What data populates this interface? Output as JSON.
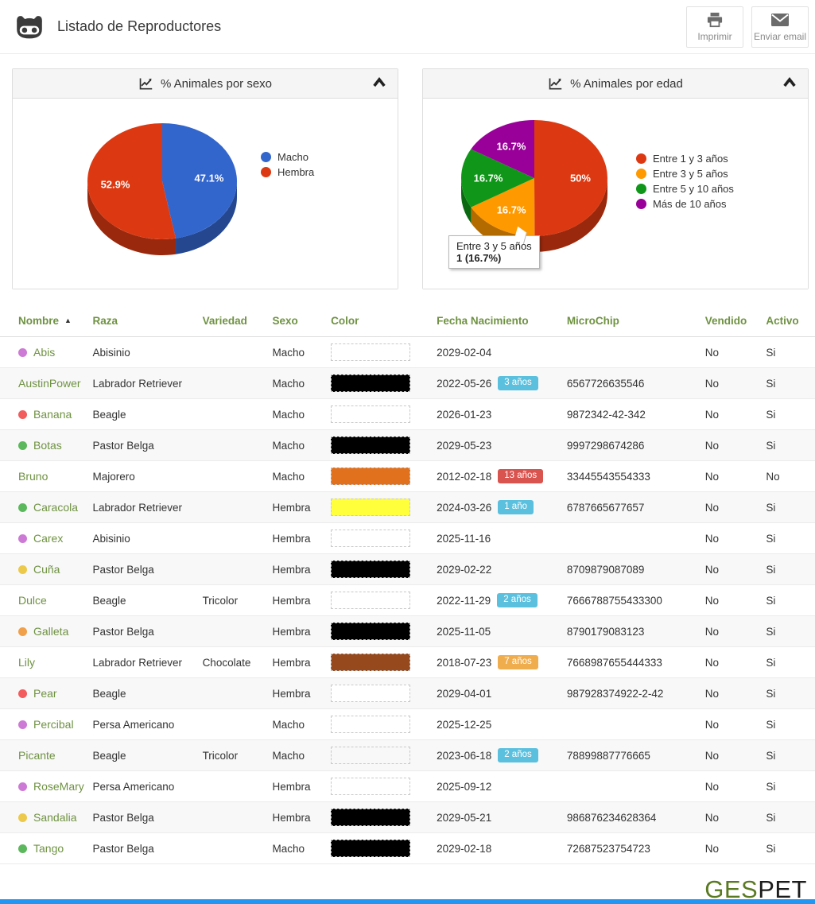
{
  "header": {
    "title": "Listado de Reproductores",
    "print_label": "Imprimir",
    "email_label": "Enviar email"
  },
  "panels": {
    "sexo_title": "% Animales por sexo",
    "edad_title": "% Animales por edad",
    "edad_tooltip": {
      "label": "Entre 3 y 5 años",
      "value": "1 (16.7%)"
    }
  },
  "chart_data": [
    {
      "type": "pie",
      "style": "3d",
      "title": "% Animales por sexo",
      "labels": [
        "Macho",
        "Hembra"
      ],
      "values": [
        47.1,
        52.9
      ],
      "display_labels": [
        "47.1%",
        "52.9%"
      ],
      "colors": [
        "#3366cc",
        "#dc3912"
      ],
      "legend_position": "right"
    },
    {
      "type": "pie",
      "style": "3d",
      "title": "% Animales por edad",
      "labels": [
        "Entre 1 y 3 años",
        "Entre 3 y 5 años",
        "Entre 5 y 10 años",
        "Más de 10 años"
      ],
      "values": [
        50,
        16.7,
        16.7,
        16.7
      ],
      "display_labels": [
        "50%",
        "16.7%",
        "16.7%",
        "16.7%"
      ],
      "colors": [
        "#dc3912",
        "#ff9900",
        "#109618",
        "#990099"
      ],
      "legend_position": "right",
      "tooltip": {
        "label": "Entre 3 y 5 años",
        "value": "1 (16.7%)"
      }
    }
  ],
  "table": {
    "columns": [
      "Nombre",
      "Raza",
      "Variedad",
      "Sexo",
      "Color",
      "Fecha Nacimiento",
      "MicroChip",
      "Vendido",
      "Activo"
    ],
    "sorted_column": "Nombre",
    "rows": [
      {
        "name": "Abis",
        "dot": "#cd7ad6",
        "raza": "Abisinio",
        "variedad": "",
        "sexo": "Macho",
        "color": "#ffffff",
        "fecha": "2029-02-04",
        "badge": null,
        "microchip": "",
        "vendido": "No",
        "activo": "Si"
      },
      {
        "name": "AustinPower",
        "dot": null,
        "raza": "Labrador Retriever",
        "variedad": "",
        "sexo": "Macho",
        "color": "#000000",
        "fecha": "2022-05-26",
        "badge": {
          "text": "3 años",
          "color": "#5bc0de"
        },
        "microchip": "6567726635546",
        "vendido": "No",
        "activo": "Si"
      },
      {
        "name": "Banana",
        "dot": "#f25c5c",
        "raza": "Beagle",
        "variedad": "",
        "sexo": "Macho",
        "color": "#ffffff",
        "fecha": "2026-01-23",
        "badge": null,
        "microchip": "9872342-42-342",
        "vendido": "No",
        "activo": "Si"
      },
      {
        "name": "Botas",
        "dot": "#5cb85c",
        "raza": "Pastor Belga",
        "variedad": "",
        "sexo": "Macho",
        "color": "#000000",
        "fecha": "2029-05-23",
        "badge": null,
        "microchip": "9997298674286",
        "vendido": "No",
        "activo": "Si"
      },
      {
        "name": "Bruno",
        "dot": null,
        "raza": "Majorero",
        "variedad": "",
        "sexo": "Macho",
        "color": "#e2711d",
        "fecha": "2012-02-18",
        "badge": {
          "text": "13 años",
          "color": "#d9534f"
        },
        "microchip": "33445543554333",
        "vendido": "No",
        "activo": "No"
      },
      {
        "name": "Caracola",
        "dot": "#5cb85c",
        "raza": "Labrador Retriever",
        "variedad": "",
        "sexo": "Hembra",
        "color": "#ffff3c",
        "fecha": "2024-03-26",
        "badge": {
          "text": "1 año",
          "color": "#5bc0de"
        },
        "microchip": "6787665677657",
        "vendido": "No",
        "activo": "Si"
      },
      {
        "name": "Carex",
        "dot": "#cd7ad6",
        "raza": "Abisinio",
        "variedad": "",
        "sexo": "Hembra",
        "color": "#ffffff",
        "fecha": "2025-11-16",
        "badge": null,
        "microchip": "",
        "vendido": "No",
        "activo": "Si"
      },
      {
        "name": "Cuña",
        "dot": "#ecc94b",
        "raza": "Pastor Belga",
        "variedad": "",
        "sexo": "Hembra",
        "color": "#000000",
        "fecha": "2029-02-22",
        "badge": null,
        "microchip": "8709879087089",
        "vendido": "No",
        "activo": "Si"
      },
      {
        "name": "Dulce",
        "dot": null,
        "raza": "Beagle",
        "variedad": "Tricolor",
        "sexo": "Hembra",
        "color": "#ffffff",
        "fecha": "2022-11-29",
        "badge": {
          "text": "2 años",
          "color": "#5bc0de"
        },
        "microchip": "7666788755433300",
        "vendido": "No",
        "activo": "Si"
      },
      {
        "name": "Galleta",
        "dot": "#f0a04a",
        "raza": "Pastor Belga",
        "variedad": "",
        "sexo": "Hembra",
        "color": "#000000",
        "fecha": "2025-11-05",
        "badge": null,
        "microchip": "8790179083123",
        "vendido": "No",
        "activo": "Si"
      },
      {
        "name": "Lily",
        "dot": null,
        "raza": "Labrador Retriever",
        "variedad": "Chocolate",
        "sexo": "Hembra",
        "color": "#96491c",
        "fecha": "2018-07-23",
        "badge": {
          "text": "7 años",
          "color": "#f0ad4e"
        },
        "microchip": "7668987655444333",
        "vendido": "No",
        "activo": "Si"
      },
      {
        "name": "Pear",
        "dot": "#f25c5c",
        "raza": "Beagle",
        "variedad": "",
        "sexo": "Hembra",
        "color": "#ffffff",
        "fecha": "2029-04-01",
        "badge": null,
        "microchip": "987928374922-2-42",
        "vendido": "No",
        "activo": "Si"
      },
      {
        "name": "Percibal",
        "dot": "#cd7ad6",
        "raza": "Persa Americano",
        "variedad": "",
        "sexo": "Macho",
        "color": "#ffffff",
        "fecha": "2025-12-25",
        "badge": null,
        "microchip": "",
        "vendido": "No",
        "activo": "Si"
      },
      {
        "name": "Picante",
        "dot": null,
        "raza": "Beagle",
        "variedad": "Tricolor",
        "sexo": "Macho",
        "color": "none",
        "fecha": "2023-06-18",
        "badge": {
          "text": "2 años",
          "color": "#5bc0de"
        },
        "microchip": "78899887776665",
        "vendido": "No",
        "activo": "Si"
      },
      {
        "name": "RoseMary",
        "dot": "#cd7ad6",
        "raza": "Persa Americano",
        "variedad": "",
        "sexo": "Hembra",
        "color": "#ffffff",
        "fecha": "2025-09-12",
        "badge": null,
        "microchip": "",
        "vendido": "No",
        "activo": "Si"
      },
      {
        "name": "Sandalia",
        "dot": "#ecc94b",
        "raza": "Pastor Belga",
        "variedad": "",
        "sexo": "Hembra",
        "color": "#000000",
        "fecha": "2029-05-21",
        "badge": null,
        "microchip": "986876234628364",
        "vendido": "No",
        "activo": "Si"
      },
      {
        "name": "Tango",
        "dot": "#5cb85c",
        "raza": "Pastor Belga",
        "variedad": "",
        "sexo": "Macho",
        "color": "#000000",
        "fecha": "2029-02-18",
        "badge": null,
        "microchip": "72687523754723",
        "vendido": "No",
        "activo": "Si"
      }
    ]
  },
  "footer": {
    "brand_ges": "GES",
    "brand_pet": "PET"
  },
  "colors": {
    "header_link_green": "#6f9242",
    "badge_info": "#5bc0de",
    "badge_danger": "#d9534f",
    "badge_warning": "#f0ad4e",
    "bottom_bar_blue": "#2196f3"
  }
}
